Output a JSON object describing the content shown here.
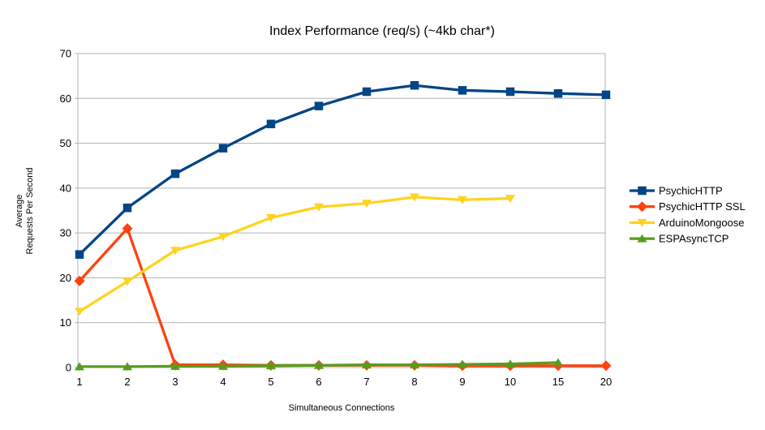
{
  "chart_data": {
    "type": "line",
    "title": "Index Performance (req/s) (~4kb char*)",
    "xlabel": "Simultaneous Connections",
    "ylabel": "Average Requests Per Second",
    "ylabel_lines": [
      "Average",
      "Requests Per Second"
    ],
    "categories": [
      "1",
      "2",
      "3",
      "4",
      "5",
      "6",
      "7",
      "8",
      "9",
      "10",
      "15",
      "20"
    ],
    "ylim": [
      0,
      70
    ],
    "yticks": [
      0,
      10,
      20,
      30,
      40,
      50,
      60,
      70
    ],
    "grid": true,
    "legend_position": "right",
    "colors": {
      "grid": "#b3b3b3",
      "axis": "#b3b3b3",
      "text": "#000000",
      "background": "#ffffff"
    },
    "series": [
      {
        "name": "PsychicHTTP",
        "color": "#004586",
        "marker": "square",
        "values": [
          25.2,
          35.6,
          43.2,
          48.9,
          54.3,
          58.3,
          61.5,
          62.9,
          61.8,
          61.5,
          61.1,
          60.8
        ]
      },
      {
        "name": "PsychicHTTP SSL",
        "color": "#FF420E",
        "marker": "diamond",
        "values": [
          19.3,
          31.0,
          0.6,
          0.6,
          0.5,
          0.5,
          0.5,
          0.5,
          0.4,
          0.4,
          0.4,
          0.4
        ]
      },
      {
        "name": "ArduinoMongoose",
        "color": "#FFD320",
        "marker": "triangle-down",
        "values": [
          12.5,
          19.2,
          26.1,
          29.2,
          33.4,
          35.8,
          36.6,
          38.0,
          37.4,
          37.7,
          null,
          null
        ]
      },
      {
        "name": "ESPAsyncTCP",
        "color": "#579D1C",
        "marker": "triangle-up",
        "values": [
          0.2,
          0.2,
          0.3,
          0.3,
          0.4,
          0.5,
          0.6,
          0.6,
          0.7,
          0.8,
          1.1,
          null
        ]
      }
    ]
  }
}
